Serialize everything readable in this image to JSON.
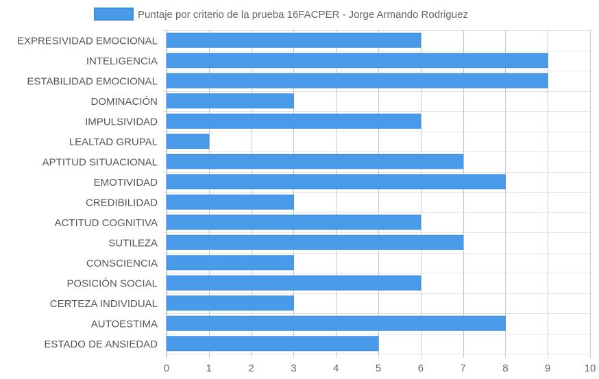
{
  "chart_data": {
    "type": "bar",
    "orientation": "horizontal",
    "legend": {
      "position": "top-center",
      "label": "Puntaje por criterio de la prueba 16FACPER - Jorge Armando Rodriguez"
    },
    "categories": [
      "EXPRESIVIDAD EMOCIONAL",
      "INTELIGENCIA",
      "ESTABILIDAD EMOCIONAL",
      "DOMINACIÓN",
      "IMPULSIVIDAD",
      "LEALTAD GRUPAL",
      "APTITUD SITUACIONAL",
      "EMOTIVIDAD",
      "CREDIBILIDAD",
      "ACTITUD COGNITIVA",
      "SUTILEZA",
      "CONSCIENCIA",
      "POSICIÓN SOCIAL",
      "CERTEZA INDIVIDUAL",
      "AUTOESTIMA",
      "ESTADO DE ANSIEDAD"
    ],
    "series": [
      {
        "name": "Puntaje por criterio de la prueba 16FACPER - Jorge Armando Rodriguez",
        "values": [
          6,
          9,
          9,
          3,
          6,
          1,
          7,
          8,
          3,
          6,
          7,
          3,
          6,
          3,
          8,
          5
        ]
      }
    ],
    "xlim": [
      0,
      10
    ],
    "xticks": [
      "0",
      "1",
      "2",
      "3",
      "4",
      "5",
      "6",
      "7",
      "8",
      "9",
      "10"
    ],
    "grid": true,
    "colors": {
      "bar_fill": "#4a9aea",
      "bar_stroke": "#3d8ee0",
      "legend_fill": "#4a9aea",
      "legend_stroke": "#3d8ee0",
      "grid_line": "#c8c8c8",
      "axis_line": "#999999",
      "text": "#666666"
    }
  }
}
